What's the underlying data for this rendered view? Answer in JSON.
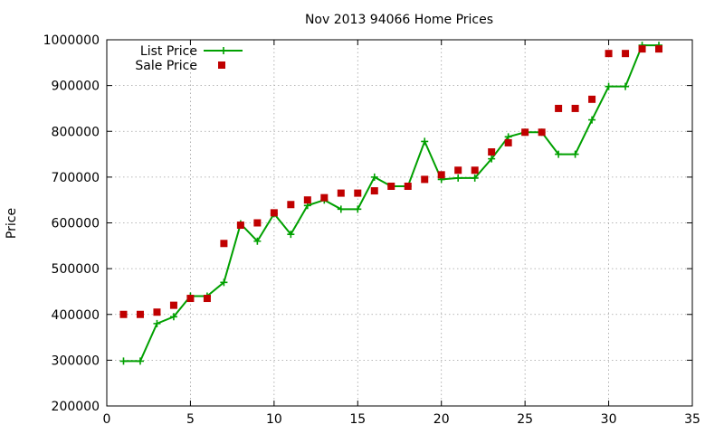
{
  "chart_data": {
    "type": "line",
    "title": "Nov 2013 94066 Home Prices",
    "xlabel": "",
    "ylabel": "Price",
    "xlim": [
      0,
      35
    ],
    "ylim": [
      200000,
      1000000
    ],
    "xticks": [
      0,
      5,
      10,
      15,
      20,
      25,
      30,
      35
    ],
    "yticks": [
      200000,
      300000,
      400000,
      500000,
      600000,
      700000,
      800000,
      900000,
      1000000
    ],
    "grid": true,
    "legend_position": "top-left",
    "series": [
      {
        "name": "List Price",
        "style": "line-with-plus-markers",
        "color": "#00a000",
        "x": [
          1,
          2,
          3,
          4,
          5,
          6,
          7,
          8,
          9,
          10,
          11,
          12,
          13,
          14,
          15,
          16,
          17,
          18,
          19,
          20,
          21,
          22,
          23,
          24,
          25,
          26,
          27,
          28,
          29,
          30,
          31,
          32,
          33
        ],
        "values": [
          298000,
          298000,
          380000,
          395000,
          440000,
          440000,
          470000,
          598000,
          560000,
          620000,
          575000,
          638000,
          650000,
          630000,
          630000,
          700000,
          680000,
          680000,
          778000,
          695000,
          698000,
          698000,
          740000,
          788000,
          798000,
          798000,
          750000,
          750000,
          825000,
          898000,
          898000,
          988000,
          988000
        ]
      },
      {
        "name": "Sale Price",
        "style": "square-markers",
        "color": "#c00000",
        "x": [
          1,
          2,
          3,
          4,
          5,
          6,
          7,
          8,
          9,
          10,
          11,
          12,
          13,
          14,
          15,
          16,
          17,
          18,
          19,
          20,
          21,
          22,
          23,
          24,
          25,
          26,
          27,
          28,
          29,
          30,
          31,
          32,
          33
        ],
        "values": [
          400000,
          400000,
          405000,
          420000,
          435000,
          435000,
          555000,
          595000,
          600000,
          622000,
          640000,
          650000,
          655000,
          665000,
          665000,
          670000,
          680000,
          680000,
          695000,
          705000,
          715000,
          715000,
          755000,
          775000,
          798000,
          798000,
          850000,
          850000,
          870000,
          970000,
          970000,
          980000,
          980000
        ]
      }
    ]
  }
}
